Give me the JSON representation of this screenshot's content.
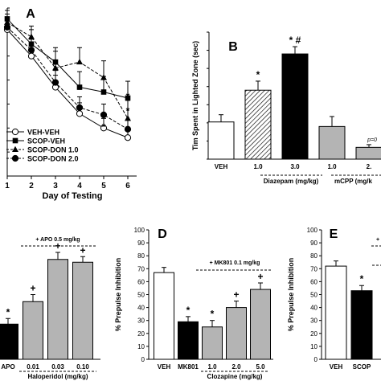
{
  "chart_data": [
    {
      "panel": "A",
      "type": "line",
      "xlabel": "Day of Testing",
      "ylabel": "",
      "x": [
        1,
        2,
        3,
        4,
        5,
        6
      ],
      "ylim": [
        0,
        14
      ],
      "yticks": [
        0,
        2,
        4,
        6,
        8,
        10,
        12,
        14
      ],
      "series": [
        {
          "name": "VEH-VEH",
          "marker": "circle-open",
          "line": "solid",
          "values": [
            12.2,
            10.0,
            7.4,
            5.2,
            4.0,
            3.2
          ],
          "err": [
            0.8,
            0.9,
            1.0,
            0.9,
            0.8,
            0.7
          ]
        },
        {
          "name": "SCOP-VEH",
          "marker": "square-filled",
          "line": "solid",
          "values": [
            13.1,
            11.0,
            9.5,
            7.4,
            7.0,
            6.5
          ],
          "err": [
            0.7,
            1.2,
            1.2,
            1.3,
            1.3,
            1.4
          ]
        },
        {
          "name": "SCOP-DON 1.0",
          "marker": "triangle-filled",
          "line": "dashed",
          "values": [
            12.8,
            11.6,
            9.0,
            9.5,
            8.2,
            4.8
          ],
          "err": [
            0.7,
            0.9,
            1.4,
            1.2,
            1.4,
            1.5
          ]
        },
        {
          "name": "SCOP-DON 2.0",
          "marker": "circle-filled",
          "line": "dashed",
          "values": [
            12.4,
            10.5,
            7.8,
            5.7,
            5.1,
            3.9
          ],
          "err": [
            0.7,
            0.9,
            1.0,
            0.9,
            0.9,
            0.8
          ]
        }
      ],
      "annotations": [
        {
          "x": 4,
          "text": "*"
        },
        {
          "x": 5,
          "text": "*"
        },
        {
          "x": 6,
          "text": "*"
        },
        {
          "x": 6,
          "text": "*"
        }
      ],
      "legend_placement": "bottom-left"
    },
    {
      "panel": "B",
      "type": "bar",
      "ylabel": "Tim Spent in Lighted Zone (sec)",
      "ylim": [
        0,
        140
      ],
      "categories": [
        "VEH",
        "1.0",
        "3.0",
        "1.0",
        "2."
      ],
      "group_labels": [
        {
          "text": "Diazepam (mg/kg)"
        },
        {
          "text": "mCPP (mg/k"
        }
      ],
      "values": [
        41,
        76,
        116,
        36,
        13
      ],
      "err": [
        8,
        10,
        8,
        11,
        3
      ],
      "fills": [
        "white",
        "hatched",
        "black",
        "gray",
        "gray"
      ],
      "annotations": [
        {
          "bar": 1,
          "text": "*"
        },
        {
          "bar": 2,
          "text": "* #"
        },
        {
          "bar": 4,
          "text": "p=0"
        }
      ]
    },
    {
      "panel": "C",
      "type": "bar",
      "ylabel": "",
      "ylim": [
        0,
        100
      ],
      "categories": [
        "APO",
        "0.01",
        "0.03",
        "0.10"
      ],
      "group_labels": [
        {
          "text": "Haloperidol (mg/kg)"
        }
      ],
      "values": [
        25,
        41,
        71,
        69
      ],
      "err": [
        4,
        5,
        5,
        4
      ],
      "fills": [
        "black",
        "gray",
        "gray",
        "gray"
      ],
      "annotations": [
        {
          "bar": 0,
          "text": "*"
        },
        {
          "bar": 1,
          "text": "+"
        },
        {
          "bar": 2,
          "text": "+"
        },
        {
          "bar": 3,
          "text": "+"
        }
      ],
      "top_label": "+ APO 0.5 mg/kg"
    },
    {
      "panel": "D",
      "type": "bar",
      "ylabel": "% Prepulse Inhibition",
      "ylim": [
        0,
        100
      ],
      "yticks": [
        0,
        10,
        20,
        30,
        40,
        50,
        60,
        70,
        80,
        90,
        100
      ],
      "categories": [
        "VEH",
        "MK801",
        "1.0",
        "2.0",
        "5.0"
      ],
      "group_labels": [
        {
          "text": "Clozapine (mg/kg)"
        }
      ],
      "values": [
        67,
        29,
        25,
        40,
        54
      ],
      "err": [
        4,
        4,
        5,
        5,
        5
      ],
      "fills": [
        "white",
        "black",
        "gray",
        "gray",
        "gray"
      ],
      "annotations": [
        {
          "bar": 1,
          "text": "*"
        },
        {
          "bar": 2,
          "text": "*"
        },
        {
          "bar": 3,
          "text": "+"
        },
        {
          "bar": 4,
          "text": "+"
        }
      ],
      "top_label": "+ MK801 0.1 mg/kg"
    },
    {
      "panel": "E",
      "type": "bar",
      "ylabel": "% Prepulse Inhibition",
      "ylim": [
        0,
        100
      ],
      "yticks": [
        0,
        10,
        20,
        30,
        40,
        50,
        60,
        70,
        80,
        90,
        100
      ],
      "categories": [
        "VEH",
        "SCOP"
      ],
      "values": [
        72,
        53
      ],
      "err": [
        4,
        4
      ],
      "fills": [
        "white",
        "black"
      ],
      "annotations": [
        {
          "bar": 1,
          "text": "*"
        }
      ],
      "top_label": "+"
    }
  ]
}
